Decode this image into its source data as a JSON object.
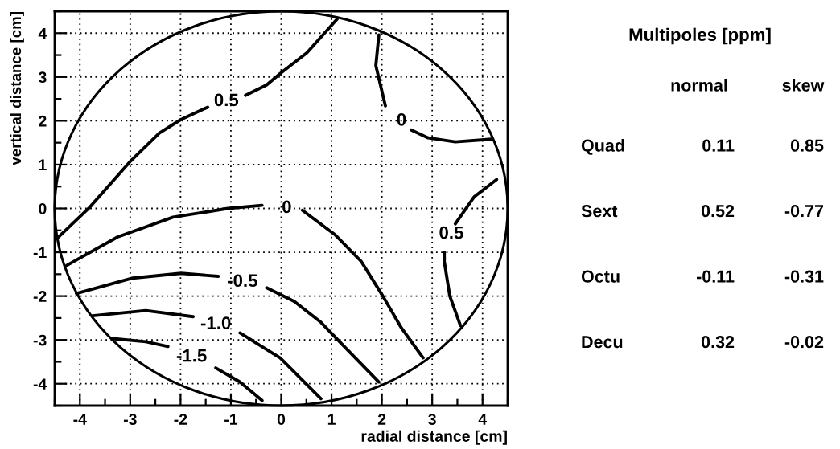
{
  "chart_data": [
    {
      "type": "line",
      "xlabel": "radial distance [cm]",
      "ylabel": "vertical distance [cm]",
      "xlim": [
        -4.5,
        4.5
      ],
      "ylim": [
        -4.5,
        4.5
      ],
      "xticks": [
        -4,
        -3,
        -2,
        -1,
        0,
        1,
        2,
        3,
        4
      ],
      "yticks": [
        -4,
        -3,
        -2,
        -1,
        0,
        1,
        2,
        3,
        4
      ],
      "grid": true,
      "series": [
        {
          "name": "0.5",
          "color": "#000000",
          "x": [
            -4.45,
            -3.81,
            -3.01,
            -2.42,
            -1.99,
            -1.46,
            -1.09,
            -0.71,
            -0.29,
            -0.02,
            0.51,
            1.11
          ],
          "values": [
            -0.68,
            0.02,
            1.06,
            1.72,
            2.03,
            2.31,
            null,
            2.58,
            2.82,
            3.08,
            3.55,
            4.32
          ]
        },
        {
          "name": "0",
          "color": "#000000",
          "x": [
            1.94,
            1.88,
            2.07,
            2.39,
            2.58,
            2.92,
            3.46,
            4.18
          ],
          "values": [
            3.96,
            3.26,
            2.34,
            null,
            1.79,
            1.61,
            1.52,
            1.58
          ]
        },
        {
          "name": "0",
          "color": "#000000",
          "x": [
            -4.26,
            -3.25,
            -2.15,
            -1.06,
            -0.38,
            0.11,
            0.42,
            1.06,
            1.59,
            2.02,
            2.39,
            2.82
          ],
          "values": [
            -1.3,
            -0.65,
            -0.2,
            0.0,
            0.07,
            null,
            -0.04,
            -0.59,
            -1.21,
            -2.0,
            -2.73,
            -3.41
          ]
        },
        {
          "name": "0.5",
          "color": "#000000",
          "x": [
            4.28,
            3.83,
            3.46,
            3.38,
            3.24,
            3.24,
            3.35,
            3.56
          ],
          "values": [
            0.66,
            0.26,
            -0.35,
            null,
            -1.0,
            -1.21,
            -2.0,
            -2.67
          ]
        },
        {
          "name": "-0.5",
          "color": "#000000",
          "x": [
            -4.07,
            -2.95,
            -1.99,
            -1.25,
            -0.77,
            -0.29,
            0.26,
            0.79,
            1.31,
            1.94
          ],
          "values": [
            -1.94,
            -1.59,
            -1.48,
            -1.55,
            null,
            -1.81,
            -2.12,
            -2.6,
            -3.22,
            -3.96
          ]
        },
        {
          "name": "-1.0",
          "color": "#000000",
          "x": [
            -3.75,
            -2.69,
            -1.75,
            -1.3,
            -0.82,
            -0.29,
            -0.02,
            0.79
          ],
          "values": [
            -2.45,
            -2.33,
            -2.47,
            null,
            -2.84,
            -3.22,
            -3.41,
            -4.34
          ]
        },
        {
          "name": "-1.5",
          "color": "#000000",
          "x": [
            -3.35,
            -2.69,
            -2.25,
            -1.78,
            -1.3,
            -0.82,
            -0.38
          ],
          "values": [
            -2.97,
            -3.04,
            -3.15,
            null,
            -3.64,
            -3.96,
            -4.38
          ]
        }
      ]
    },
    {
      "type": "other",
      "title": "Multipoles [ppm]",
      "annotations": [
        "normal",
        "skew",
        "Quad",
        "0.11",
        "0.85",
        "Sext",
        "0.52",
        "-0.77",
        "Octu",
        "-0.11",
        "-0.31",
        "Decu",
        "0.32",
        "-0.02"
      ]
    }
  ]
}
